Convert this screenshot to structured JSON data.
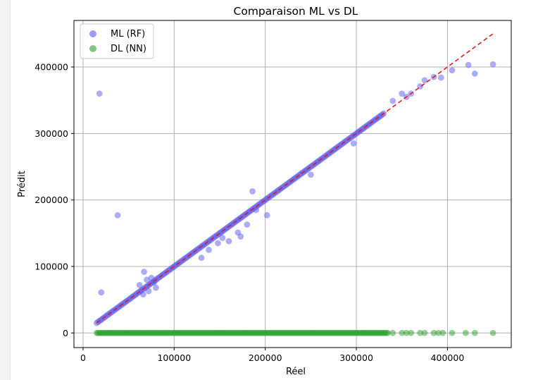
{
  "chart_data": {
    "type": "scatter",
    "title": "Comparaison ML vs DL",
    "xlabel": "Réel",
    "ylabel": "Prédit",
    "xlim": [
      -10000,
      470000
    ],
    "ylim": [
      -22000,
      470000
    ],
    "xticks": [
      0,
      100000,
      200000,
      300000,
      400000
    ],
    "yticks": [
      0,
      100000,
      200000,
      300000,
      400000
    ],
    "grid": true,
    "legend": "top-left",
    "reference_line": {
      "from": [
        15000,
        15000
      ],
      "to": [
        450000,
        450000
      ],
      "color": "#e41a1c",
      "style": "dashed"
    },
    "series": [
      {
        "name": "ML (RF)",
        "color": "#5b5bf0",
        "points": [
          [
            18000,
            360000
          ],
          [
            38000,
            177000
          ],
          [
            20000,
            61000
          ],
          [
            67000,
            92000
          ],
          [
            70000,
            80000
          ],
          [
            75000,
            83000
          ],
          [
            80000,
            68000
          ],
          [
            62000,
            72000
          ],
          [
            66000,
            58000
          ],
          [
            72000,
            63000
          ],
          [
            78000,
            76000
          ],
          [
            130000,
            113000
          ],
          [
            138000,
            125000
          ],
          [
            148000,
            135000
          ],
          [
            153000,
            143000
          ],
          [
            160000,
            138000
          ],
          [
            170000,
            151000
          ],
          [
            173000,
            145000
          ],
          [
            180000,
            163000
          ],
          [
            186000,
            213000
          ],
          [
            202000,
            177000
          ],
          [
            190000,
            185000
          ],
          [
            250000,
            238000
          ],
          [
            297000,
            285000
          ],
          [
            340000,
            349000
          ],
          [
            350000,
            360000
          ],
          [
            355000,
            355000
          ],
          [
            360000,
            360000
          ],
          [
            370000,
            371000
          ],
          [
            375000,
            380000
          ],
          [
            385000,
            385000
          ],
          [
            393000,
            384000
          ],
          [
            405000,
            395000
          ],
          [
            423000,
            403000
          ],
          [
            430000,
            390000
          ],
          [
            450000,
            404000
          ]
        ]
      },
      {
        "name": "DL (NN)",
        "color": "#2ca02c",
        "points": [
          [
            340000,
            0
          ],
          [
            350000,
            0
          ],
          [
            355000,
            0
          ],
          [
            360000,
            0
          ],
          [
            370000,
            0
          ],
          [
            375000,
            0
          ],
          [
            385000,
            0
          ],
          [
            390000,
            0
          ],
          [
            395000,
            0
          ],
          [
            405000,
            0
          ],
          [
            420000,
            0
          ],
          [
            430000,
            0
          ],
          [
            450000,
            0
          ]
        ]
      }
    ]
  },
  "figure": {
    "background": "#ffffff",
    "axes_edge": "#000000",
    "grid_color": "#b0b0b0"
  }
}
